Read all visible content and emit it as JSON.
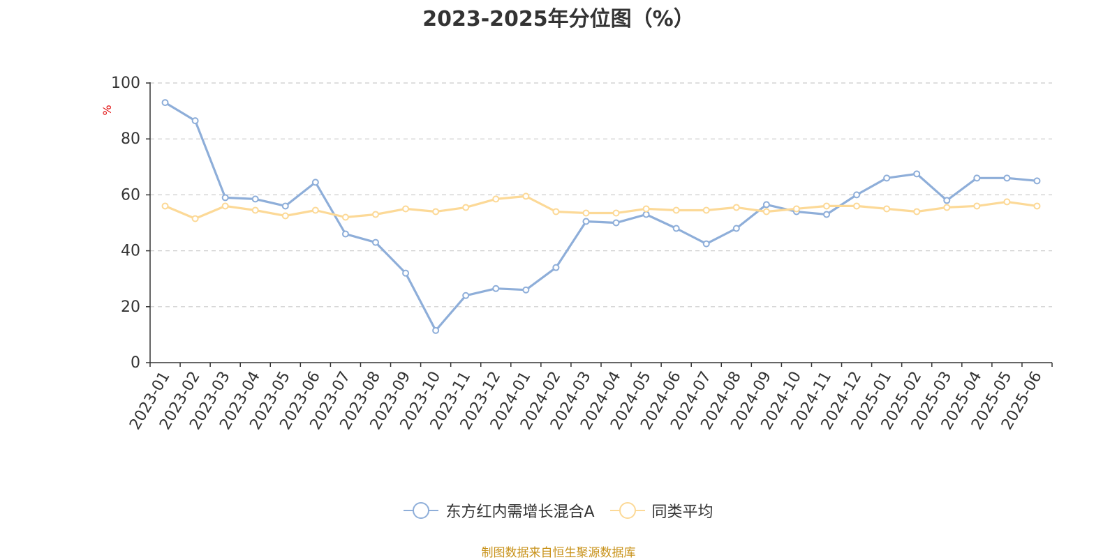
{
  "chart_data": {
    "type": "line",
    "title": "2023-2025年分位图（%）",
    "ylabel": "%",
    "ylim": [
      0,
      100
    ],
    "yticks": [
      "0",
      "20",
      "40",
      "60",
      "80",
      "100"
    ],
    "grid": true,
    "legend_position": "bottom-center",
    "categories": [
      "2023-01",
      "2023-02",
      "2023-03",
      "2023-04",
      "2023-05",
      "2023-06",
      "2023-07",
      "2023-08",
      "2023-09",
      "2023-10",
      "2023-11",
      "2023-12",
      "2024-01",
      "2024-02",
      "2024-03",
      "2024-04",
      "2024-05",
      "2024-06",
      "2024-07",
      "2024-08",
      "2024-09",
      "2024-10",
      "2024-11",
      "2024-12",
      "2025-01",
      "2025-02",
      "2025-03",
      "2025-04",
      "2025-05",
      "2025-06"
    ],
    "series": [
      {
        "name": "东方红内需增长混合A",
        "color": "#8eaed9",
        "values": [
          93,
          86.5,
          59,
          58.5,
          56,
          64.5,
          46,
          43,
          32,
          11.5,
          24,
          26.5,
          26,
          34,
          50.5,
          50,
          53,
          48,
          42.5,
          48,
          56.5,
          54,
          53,
          60,
          66,
          67.5,
          58,
          66,
          66,
          65
        ]
      },
      {
        "name": "同类平均",
        "color": "#fcd997",
        "values": [
          56,
          51.5,
          56,
          54.5,
          52.5,
          54.5,
          52,
          53,
          55,
          54,
          55.5,
          58.5,
          59.5,
          54,
          53.5,
          53.5,
          55,
          54.5,
          54.5,
          55.5,
          54,
          55,
          56,
          56,
          55,
          54,
          55.5,
          56,
          57.5,
          56
        ]
      }
    ]
  },
  "colors": {
    "axis": "#333333",
    "grid": "#cccccc",
    "unit_label": "#e10e0e",
    "source_text": "#c8921a"
  },
  "source": "制图数据来自恒生聚源数据库"
}
